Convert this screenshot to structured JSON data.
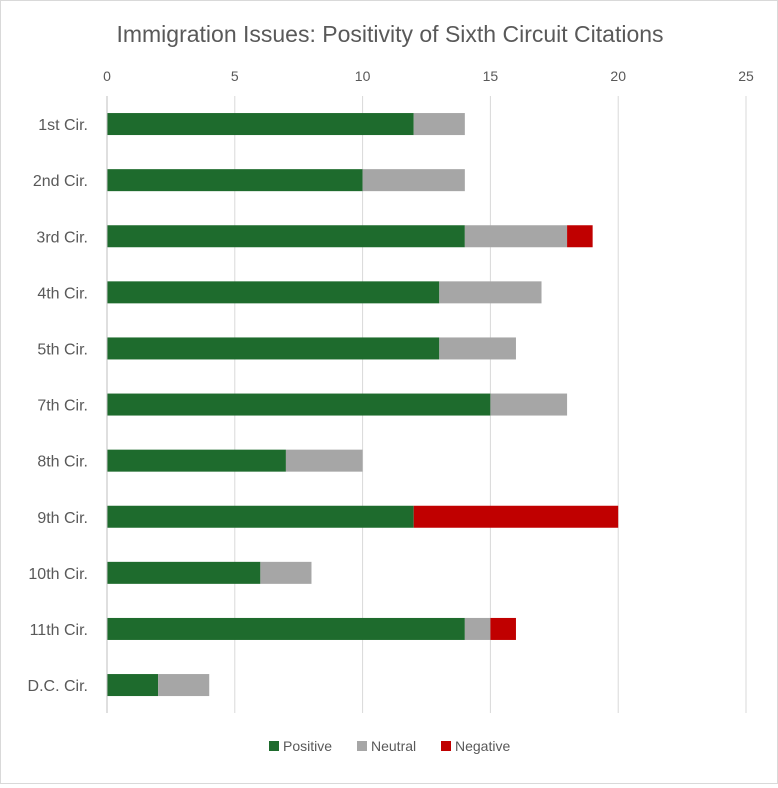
{
  "chart_data": {
    "type": "bar",
    "orientation": "horizontal",
    "stacked": true,
    "title": "Immigration Issues: Positivity of Sixth Circuit Citations",
    "xlabel": "",
    "ylabel": "",
    "xlim": [
      0,
      25
    ],
    "x_ticks": [
      "0",
      "5",
      "10",
      "15",
      "20",
      "25"
    ],
    "x_axis_position": "top",
    "grid": true,
    "legend_position": "bottom",
    "categories": [
      "1st Cir.",
      "2nd Cir.",
      "3rd Cir.",
      "4th Cir.",
      "5th Cir.",
      "7th Cir.",
      "8th Cir.",
      "9th Cir.",
      "10th Cir.",
      "11th Cir.",
      "D.C. Cir."
    ],
    "series": [
      {
        "name": "Positive",
        "color": "#1e6b2d",
        "values": [
          12,
          10,
          14,
          13,
          13,
          15,
          7,
          12,
          6,
          14,
          2
        ]
      },
      {
        "name": "Neutral",
        "color": "#a6a6a6",
        "values": [
          2,
          4,
          4,
          4,
          3,
          3,
          3,
          0,
          2,
          1,
          2
        ]
      },
      {
        "name": "Negative",
        "color": "#c00000",
        "values": [
          0,
          0,
          1,
          0,
          0,
          0,
          0,
          8,
          0,
          1,
          0
        ]
      }
    ]
  }
}
